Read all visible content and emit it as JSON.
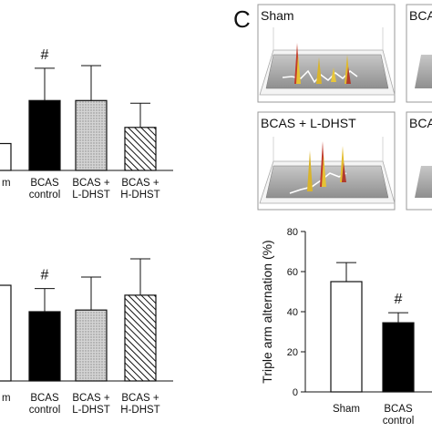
{
  "panel_c": {
    "letter": "C",
    "trace_labels": [
      "Sham",
      "BCAS + L-DHST",
      "BCA",
      "BCA"
    ]
  },
  "chart_data": [
    {
      "type": "bar",
      "panel": "top-left (partial)",
      "categories": [
        "Sham",
        "BCAS control",
        "BCAS + L-DHST",
        "BCAS + H-DHST"
      ],
      "category_labels": [
        [
          "m"
        ],
        [
          "BCAS",
          "control"
        ],
        [
          "BCAS +",
          "L-DHST"
        ],
        [
          "BCAS +",
          "H-DHST"
        ]
      ],
      "values": [
        1.0,
        2.6,
        2.6,
        1.6
      ],
      "errors": [
        null,
        1.2,
        1.3,
        0.9
      ],
      "annotations": [
        {
          "category": "BCAS control",
          "text": "#"
        }
      ],
      "fills": [
        "#ffffff",
        "#000000",
        "dotted-grey",
        "hatched"
      ],
      "ylabel": "",
      "ylim": [
        0,
        4
      ]
    },
    {
      "type": "bar",
      "panel": "middle-left (partial)",
      "categories": [
        "Sham",
        "BCAS control",
        "BCAS + L-DHST",
        "BCAS + H-DHST"
      ],
      "category_labels": [
        [
          "m"
        ],
        [
          "BCAS",
          "control"
        ],
        [
          "BCAS +",
          "L-DHST"
        ],
        [
          "BCAS +",
          "H-DHST"
        ]
      ],
      "values": [
        2.9,
        2.1,
        2.15,
        2.6
      ],
      "errors": [
        null,
        0.7,
        1.0,
        1.1
      ],
      "annotations": [
        {
          "category": "BCAS control",
          "text": "#"
        }
      ],
      "fills": [
        "#ffffff",
        "#000000",
        "dotted-grey",
        "hatched"
      ],
      "ylabel": "",
      "ylim": [
        0,
        4
      ]
    },
    {
      "type": "bar",
      "panel": "C bottom",
      "categories": [
        "Sham",
        "BCAS control"
      ],
      "category_labels": [
        [
          "Sham"
        ],
        [
          "BCAS",
          "control"
        ]
      ],
      "values": [
        55,
        34.5
      ],
      "errors": [
        9.5,
        5
      ],
      "annotations": [
        {
          "category": "BCAS control",
          "text": "#"
        }
      ],
      "fills": [
        "#ffffff",
        "#000000"
      ],
      "ylabel": "Triple arm alternation (%)",
      "yticks": [
        0,
        20,
        40,
        60,
        80
      ],
      "ylim": [
        0,
        80
      ]
    }
  ]
}
